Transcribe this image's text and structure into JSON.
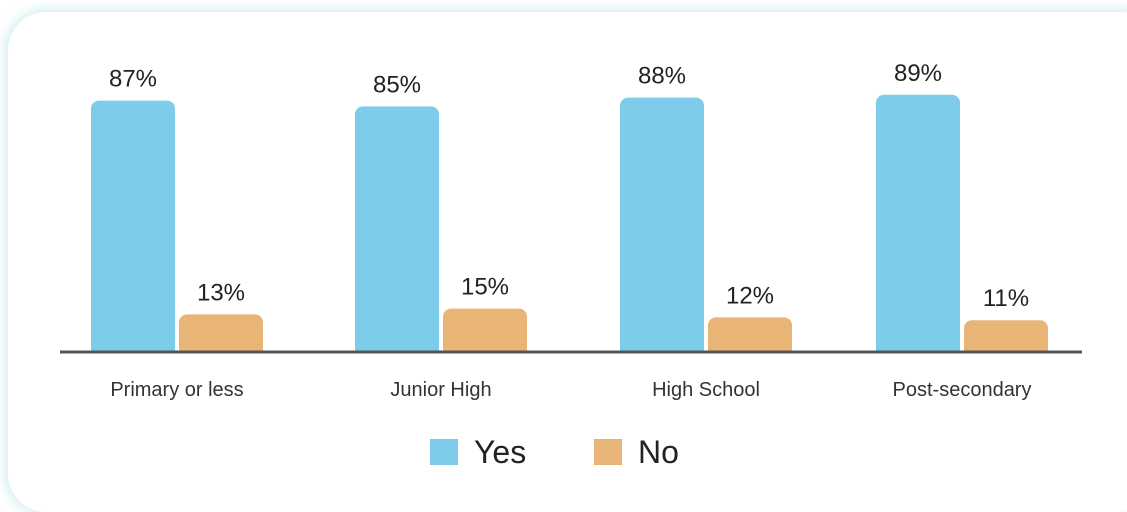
{
  "chart_data": {
    "type": "bar",
    "categories": [
      "Primary or less",
      "Junior High",
      "High School",
      "Post-secondary"
    ],
    "series": [
      {
        "name": "Yes",
        "values": [
          87,
          85,
          88,
          89
        ],
        "color": "#7dcdea"
      },
      {
        "name": "No",
        "values": [
          13,
          15,
          12,
          11
        ],
        "color": "#e8b577"
      }
    ],
    "data_labels": [
      [
        "87%",
        "85%",
        "88%",
        "89%"
      ],
      [
        "13%",
        "15%",
        "12%",
        "11%"
      ]
    ],
    "ylim": [
      0,
      100
    ],
    "legend_position": "bottom-center",
    "grid": false
  }
}
